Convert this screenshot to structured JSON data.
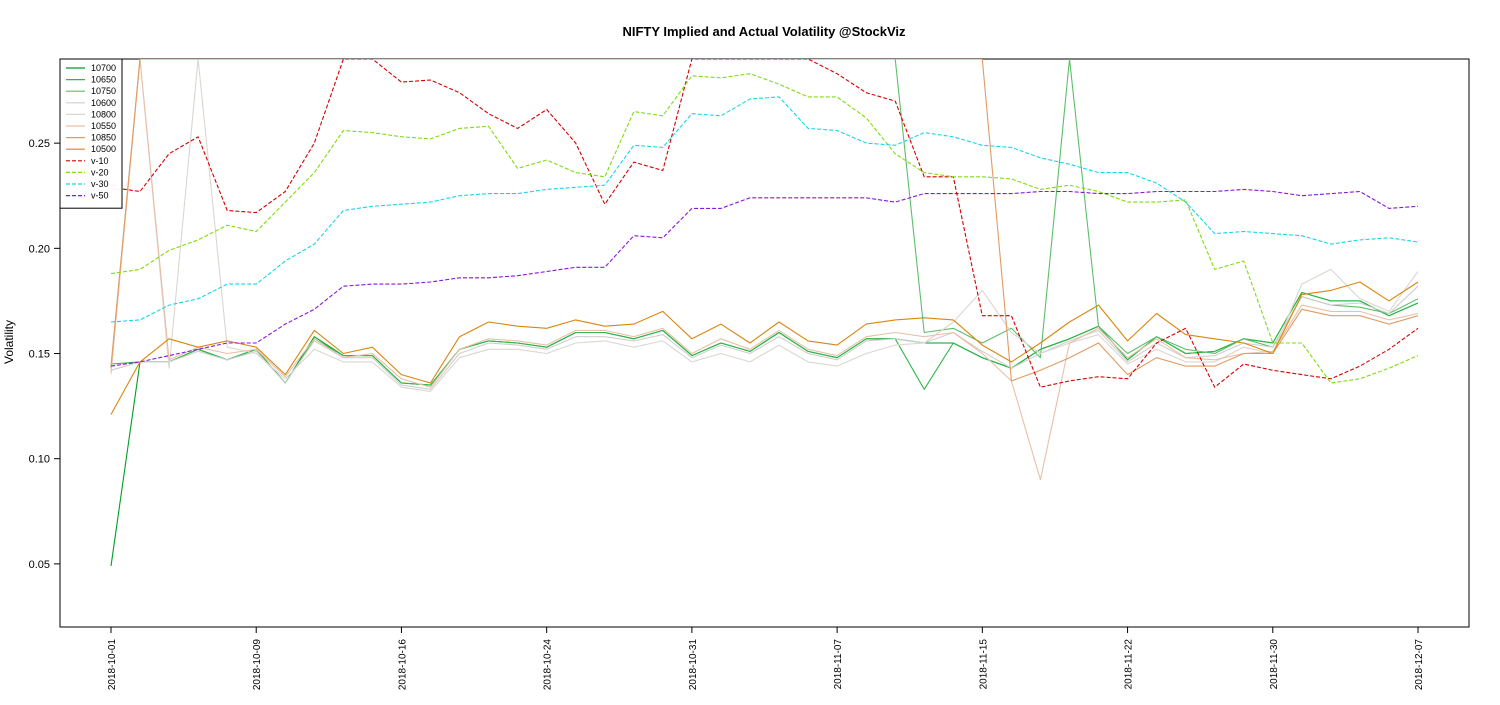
{
  "chart_data": {
    "type": "line",
    "title": "NIFTY Implied and Actual Volatility @StockViz",
    "xlabel": "",
    "ylabel": "Volatility",
    "ylim": [
      0.02,
      0.29
    ],
    "yticks": [
      0.05,
      0.1,
      0.15,
      0.2,
      0.25
    ],
    "ytick_labels": [
      "0.05",
      "0.10",
      "0.15",
      "0.20",
      "0.25"
    ],
    "xtick_labels": [
      "2018-10-01",
      "2018-10-09",
      "2018-10-16",
      "2018-10-24",
      "2018-10-31",
      "2018-11-07",
      "2018-11-15",
      "2018-11-22",
      "2018-11-30",
      "2018-12-07"
    ],
    "xtick_index": [
      0,
      5,
      10,
      15,
      20,
      25,
      30,
      35,
      40,
      45
    ],
    "n_points": 46,
    "grid": false,
    "legend_position": "top-left",
    "series": [
      {
        "name": "10700",
        "color": "#009e24",
        "dash": "solid",
        "values": [
          0.049,
          0.146,
          0.146,
          0.152,
          0.147,
          0.152,
          0.136,
          0.158,
          0.149,
          0.149,
          0.136,
          0.135,
          0.152,
          0.156,
          0.155,
          0.153,
          0.16,
          0.16,
          0.157,
          0.161,
          0.149,
          0.155,
          0.151,
          0.16,
          0.151,
          0.148,
          0.157,
          0.157,
          0.155,
          0.155,
          0.148,
          0.143,
          0.152,
          0.157,
          0.163,
          0.147,
          0.158,
          0.15,
          0.151,
          0.157,
          0.155,
          0.179,
          0.175,
          0.175,
          0.168,
          0.174
        ]
      },
      {
        "name": "10650",
        "color": "#2eb84a",
        "dash": "solid",
        "values": [
          0.145,
          0.146,
          0.146,
          0.152,
          0.147,
          0.152,
          0.136,
          0.157,
          0.149,
          0.149,
          0.136,
          0.135,
          0.152,
          0.156,
          0.155,
          0.153,
          0.16,
          0.16,
          0.157,
          0.161,
          0.149,
          0.155,
          0.151,
          0.16,
          0.151,
          0.148,
          0.157,
          0.157,
          0.133,
          0.155,
          0.148,
          0.143,
          0.152,
          0.157,
          0.163,
          0.147,
          0.158,
          0.15,
          0.151,
          0.157,
          0.155,
          0.179,
          0.175,
          0.175,
          0.168,
          0.174
        ]
      },
      {
        "name": "10750",
        "color": "#5cbf6a",
        "dash": "solid",
        "values": [
          0.143,
          0.29,
          0.29,
          0.29,
          0.29,
          0.29,
          0.29,
          0.29,
          0.29,
          0.29,
          0.29,
          0.29,
          0.29,
          0.29,
          0.29,
          0.29,
          0.29,
          0.29,
          0.29,
          0.29,
          0.29,
          0.29,
          0.29,
          0.29,
          0.29,
          0.29,
          0.29,
          0.29,
          0.16,
          0.162,
          0.155,
          0.162,
          0.148,
          0.29,
          0.163,
          0.15,
          0.158,
          0.152,
          0.15,
          0.157,
          0.153,
          0.177,
          0.173,
          0.172,
          0.169,
          0.176
        ]
      },
      {
        "name": "10600",
        "color": "#cfcfcf",
        "dash": "solid",
        "values": [
          0.142,
          0.146,
          0.146,
          0.151,
          0.147,
          0.151,
          0.136,
          0.156,
          0.148,
          0.148,
          0.135,
          0.133,
          0.15,
          0.155,
          0.154,
          0.152,
          0.158,
          0.158,
          0.156,
          0.159,
          0.148,
          0.154,
          0.15,
          0.158,
          0.15,
          0.147,
          0.156,
          0.157,
          0.155,
          0.16,
          0.151,
          0.143,
          0.15,
          0.156,
          0.161,
          0.146,
          0.155,
          0.148,
          0.149,
          0.155,
          0.153,
          0.177,
          0.173,
          0.174,
          0.169,
          0.182
        ]
      },
      {
        "name": "10800",
        "color": "#dcd6d0",
        "dash": "solid",
        "values": [
          0.14,
          0.29,
          0.143,
          0.29,
          0.153,
          0.15,
          0.138,
          0.152,
          0.146,
          0.146,
          0.134,
          0.132,
          0.148,
          0.152,
          0.152,
          0.15,
          0.155,
          0.156,
          0.153,
          0.156,
          0.146,
          0.15,
          0.146,
          0.154,
          0.146,
          0.144,
          0.15,
          0.154,
          0.155,
          0.165,
          0.18,
          0.16,
          0.15,
          0.155,
          0.159,
          0.145,
          0.152,
          0.146,
          0.146,
          0.153,
          0.15,
          0.183,
          0.19,
          0.176,
          0.17,
          0.189
        ]
      },
      {
        "name": "10550",
        "color": "#e8c0a8",
        "dash": "solid",
        "values": [
          0.141,
          0.29,
          0.147,
          0.153,
          0.15,
          0.152,
          0.139,
          0.157,
          0.148,
          0.15,
          0.138,
          0.134,
          0.152,
          0.157,
          0.156,
          0.154,
          0.161,
          0.161,
          0.158,
          0.162,
          0.15,
          0.157,
          0.152,
          0.161,
          0.152,
          0.149,
          0.158,
          0.16,
          0.158,
          0.16,
          0.15,
          0.137,
          0.09,
          0.155,
          0.162,
          0.148,
          0.157,
          0.148,
          0.147,
          0.15,
          0.151,
          0.173,
          0.17,
          0.17,
          0.166,
          0.169
        ]
      },
      {
        "name": "10850",
        "color": "#e39a62",
        "dash": "solid",
        "values": [
          0.144,
          0.29,
          0.29,
          0.29,
          0.29,
          0.29,
          0.29,
          0.29,
          0.29,
          0.29,
          0.29,
          0.29,
          0.29,
          0.29,
          0.29,
          0.29,
          0.29,
          0.29,
          0.29,
          0.29,
          0.29,
          0.29,
          0.29,
          0.29,
          0.29,
          0.29,
          0.29,
          0.29,
          0.29,
          0.29,
          0.29,
          0.137,
          0.142,
          0.148,
          0.155,
          0.14,
          0.148,
          0.144,
          0.144,
          0.15,
          0.15,
          0.171,
          0.168,
          0.168,
          0.164,
          0.168
        ]
      },
      {
        "name": "10500",
        "color": "#d9860f",
        "dash": "solid",
        "values": [
          0.121,
          0.146,
          0.157,
          0.153,
          0.156,
          0.153,
          0.14,
          0.161,
          0.15,
          0.153,
          0.14,
          0.136,
          0.158,
          0.165,
          0.163,
          0.162,
          0.166,
          0.163,
          0.164,
          0.17,
          0.157,
          0.164,
          0.155,
          0.165,
          0.156,
          0.154,
          0.164,
          0.166,
          0.167,
          0.166,
          0.154,
          0.146,
          0.155,
          0.165,
          0.173,
          0.156,
          0.169,
          0.159,
          0.157,
          0.155,
          0.15,
          0.178,
          0.18,
          0.184,
          0.175,
          0.184
        ]
      },
      {
        "name": "v-10",
        "color": "#d40000",
        "dash": "dashed",
        "values": [
          0.229,
          0.227,
          0.245,
          0.253,
          0.218,
          0.217,
          0.227,
          0.25,
          0.29,
          0.29,
          0.279,
          0.28,
          0.274,
          0.264,
          0.257,
          0.266,
          0.25,
          0.221,
          0.241,
          0.237,
          0.29,
          0.29,
          0.29,
          0.29,
          0.29,
          0.283,
          0.274,
          0.27,
          0.234,
          0.234,
          0.168,
          0.168,
          0.134,
          0.137,
          0.139,
          0.138,
          0.155,
          0.162,
          0.134,
          0.145,
          0.142,
          0.14,
          0.138,
          0.144,
          0.152,
          0.162
        ]
      },
      {
        "name": "v-20",
        "color": "#7fdc10",
        "dash": "dashed",
        "values": [
          0.188,
          0.19,
          0.199,
          0.204,
          0.211,
          0.208,
          0.222,
          0.236,
          0.256,
          0.255,
          0.253,
          0.252,
          0.257,
          0.258,
          0.238,
          0.242,
          0.236,
          0.234,
          0.265,
          0.263,
          0.282,
          0.281,
          0.283,
          0.278,
          0.272,
          0.272,
          0.262,
          0.245,
          0.236,
          0.234,
          0.234,
          0.233,
          0.228,
          0.23,
          0.227,
          0.222,
          0.222,
          0.223,
          0.19,
          0.194,
          0.155,
          0.155,
          0.136,
          0.138,
          0.143,
          0.149
        ]
      },
      {
        "name": "v-30",
        "color": "#16d6e6",
        "dash": "dashed",
        "values": [
          0.165,
          0.166,
          0.173,
          0.176,
          0.183,
          0.183,
          0.194,
          0.202,
          0.218,
          0.22,
          0.221,
          0.222,
          0.225,
          0.226,
          0.226,
          0.228,
          0.229,
          0.23,
          0.249,
          0.248,
          0.264,
          0.263,
          0.271,
          0.272,
          0.257,
          0.256,
          0.25,
          0.249,
          0.255,
          0.253,
          0.249,
          0.248,
          0.243,
          0.24,
          0.236,
          0.236,
          0.231,
          0.222,
          0.207,
          0.208,
          0.207,
          0.206,
          0.202,
          0.204,
          0.205,
          0.203
        ]
      },
      {
        "name": "v-50",
        "color": "#8a16d8",
        "dash": "dashed",
        "values": [
          0.144,
          0.146,
          0.149,
          0.152,
          0.155,
          0.155,
          0.164,
          0.171,
          0.182,
          0.183,
          0.183,
          0.184,
          0.186,
          0.186,
          0.187,
          0.189,
          0.191,
          0.191,
          0.206,
          0.205,
          0.219,
          0.219,
          0.224,
          0.224,
          0.224,
          0.224,
          0.224,
          0.222,
          0.226,
          0.226,
          0.226,
          0.226,
          0.227,
          0.227,
          0.226,
          0.226,
          0.227,
          0.227,
          0.227,
          0.228,
          0.227,
          0.225,
          0.226,
          0.227,
          0.219,
          0.22
        ]
      }
    ]
  }
}
